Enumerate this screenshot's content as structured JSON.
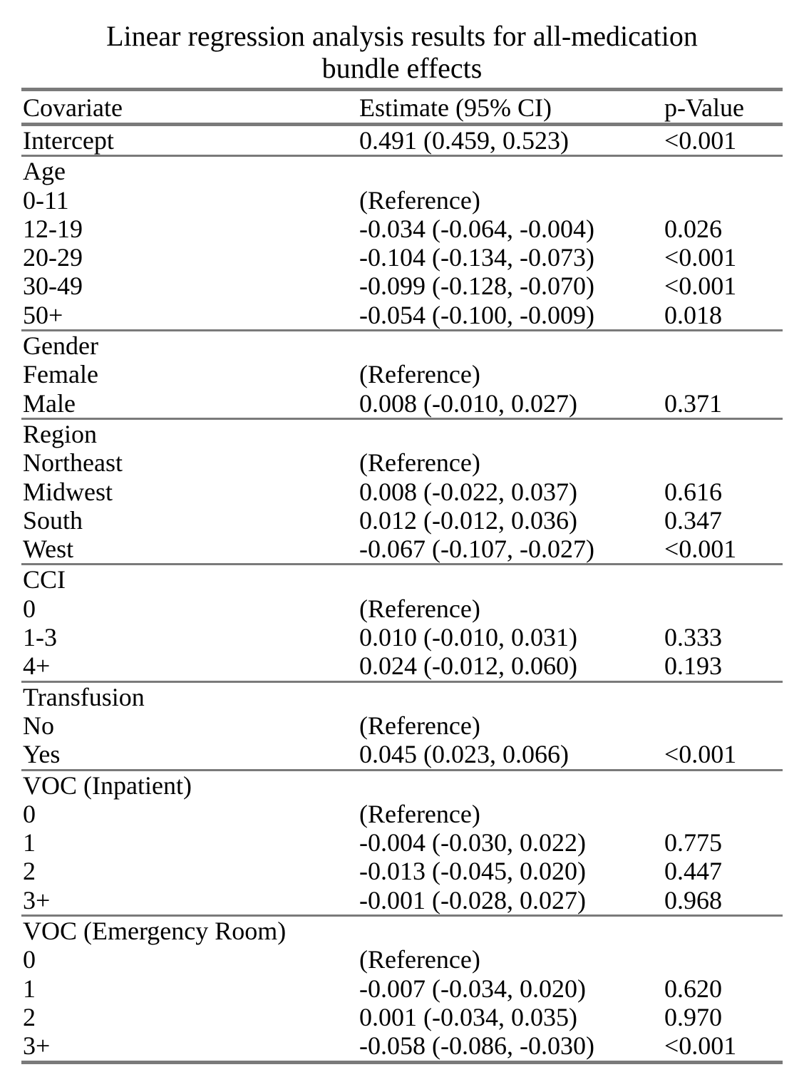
{
  "title_line1": "Linear regression analysis results for all-medication",
  "title_line2": "bundle effects",
  "headers": {
    "covariate": "Covariate",
    "estimate": "Estimate (95% CI)",
    "pvalue": "p-Value"
  },
  "intercept": {
    "label": "Intercept",
    "estimate": "0.491 (0.459, 0.523)",
    "p": "<0.001"
  },
  "groups": [
    {
      "name": "Age",
      "rows": [
        {
          "label": "0-11",
          "estimate": "(Reference)",
          "p": ""
        },
        {
          "label": "12-19",
          "estimate": "-0.034 (-0.064, -0.004)",
          "p": "0.026"
        },
        {
          "label": "20-29",
          "estimate": "-0.104 (-0.134, -0.073)",
          "p": "<0.001"
        },
        {
          "label": "30-49",
          "estimate": "-0.099 (-0.128, -0.070)",
          "p": "<0.001"
        },
        {
          "label": "50+",
          "estimate": "-0.054 (-0.100, -0.009)",
          "p": "0.018"
        }
      ]
    },
    {
      "name": "Gender",
      "rows": [
        {
          "label": "Female",
          "estimate": "(Reference)",
          "p": ""
        },
        {
          "label": "Male",
          "estimate": "0.008 (-0.010, 0.027)",
          "p": "0.371"
        }
      ]
    },
    {
      "name": "Region",
      "rows": [
        {
          "label": "Northeast",
          "estimate": "(Reference)",
          "p": ""
        },
        {
          "label": "Midwest",
          "estimate": "0.008 (-0.022, 0.037)",
          "p": "0.616"
        },
        {
          "label": "South",
          "estimate": "0.012 (-0.012, 0.036)",
          "p": "0.347"
        },
        {
          "label": "West",
          "estimate": "-0.067 (-0.107, -0.027)",
          "p": "<0.001"
        }
      ]
    },
    {
      "name": "CCI",
      "rows": [
        {
          "label": "0",
          "estimate": "(Reference)",
          "p": ""
        },
        {
          "label": "1-3",
          "estimate": "0.010 (-0.010, 0.031)",
          "p": "0.333"
        },
        {
          "label": "4+",
          "estimate": "0.024 (-0.012, 0.060)",
          "p": "0.193"
        }
      ]
    },
    {
      "name": "Transfusion",
      "rows": [
        {
          "label": "No",
          "estimate": "(Reference)",
          "p": ""
        },
        {
          "label": "Yes",
          "estimate": "0.045 (0.023, 0.066)",
          "p": "<0.001"
        }
      ]
    },
    {
      "name": "VOC (Inpatient)",
      "rows": [
        {
          "label": "0",
          "estimate": "(Reference)",
          "p": ""
        },
        {
          "label": "1",
          "estimate": "-0.004 (-0.030, 0.022)",
          "p": "0.775"
        },
        {
          "label": "2",
          "estimate": "-0.013 (-0.045, 0.020)",
          "p": "0.447"
        },
        {
          "label": "3+",
          "estimate": "-0.001 (-0.028, 0.027)",
          "p": "0.968"
        }
      ]
    },
    {
      "name": "VOC (Emergency Room)",
      "rows": [
        {
          "label": "0",
          "estimate": "(Reference)",
          "p": ""
        },
        {
          "label": "1",
          "estimate": "-0.007 (-0.034, 0.020)",
          "p": "0.620"
        },
        {
          "label": "2",
          "estimate": "0.001 (-0.034, 0.035)",
          "p": "0.970"
        },
        {
          "label": "3+",
          "estimate": "-0.058 (-0.086, -0.030)",
          "p": "<0.001"
        }
      ]
    }
  ]
}
